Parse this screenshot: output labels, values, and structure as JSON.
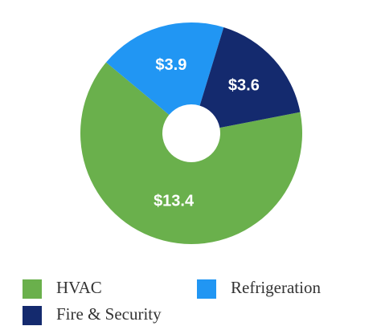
{
  "chart_data": {
    "type": "pie",
    "categories": [
      "HVAC",
      "Refrigeration",
      "Fire & Security"
    ],
    "values": [
      13.4,
      3.9,
      3.6
    ],
    "value_labels": [
      "$13.4",
      "$3.9",
      "$3.6"
    ],
    "colors": [
      "#6ab04c",
      "#2196f3",
      "#142a6e"
    ]
  }
}
